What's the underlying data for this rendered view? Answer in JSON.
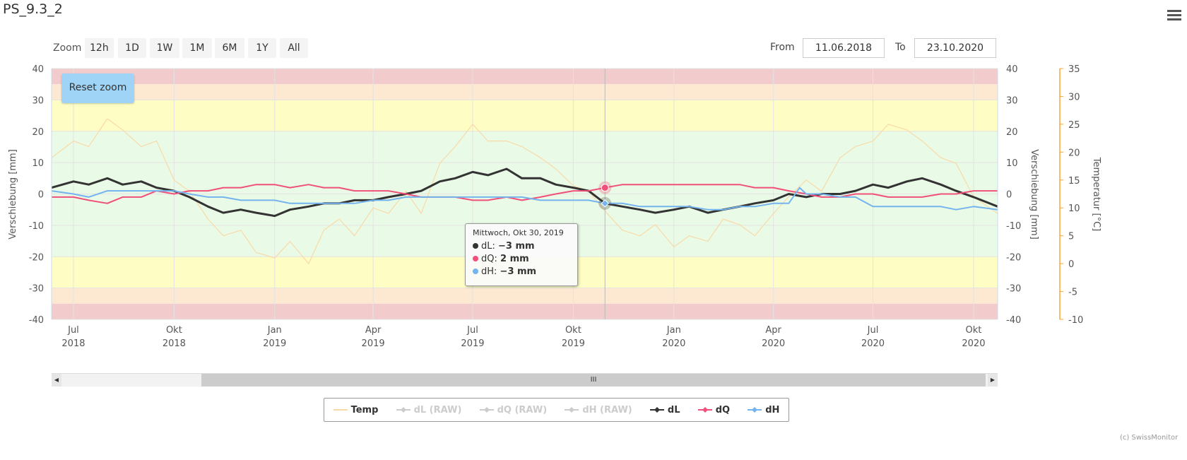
{
  "title": "PS_9.3_2",
  "zoom": {
    "label": "Zoom",
    "buttons": [
      "12h",
      "1D",
      "1W",
      "1M",
      "6M",
      "1Y",
      "All"
    ]
  },
  "range": {
    "from_label": "From",
    "from": "11.06.2018",
    "to_label": "To",
    "to": "23.10.2020"
  },
  "reset_zoom": "Reset zoom",
  "tooltip": {
    "header": "Mittwoch, Okt 30, 2019",
    "rows": [
      {
        "name": "dL",
        "value": "−3 mm",
        "color": "#333333"
      },
      {
        "name": "dQ",
        "value": "2 mm",
        "color": "#f0507a"
      },
      {
        "name": "dH",
        "value": "−3 mm",
        "color": "#74b4ee"
      }
    ]
  },
  "legend": [
    {
      "name": "Temp",
      "color": "#f9d9a8",
      "active": true
    },
    {
      "name": "dL (RAW)",
      "color": "#cccccc",
      "active": false
    },
    {
      "name": "dQ (RAW)",
      "color": "#cccccc",
      "active": false
    },
    {
      "name": "dH (RAW)",
      "color": "#cccccc",
      "active": false
    },
    {
      "name": "dL",
      "color": "#333333",
      "active": true
    },
    {
      "name": "dQ",
      "color": "#f0507a",
      "active": true
    },
    {
      "name": "dH",
      "color": "#74b4ee",
      "active": true
    }
  ],
  "credit": "(c) SwissMonitor",
  "scrollbar_thumb": "III",
  "chart_data": {
    "type": "line",
    "x_range": [
      "2018-06-11",
      "2020-10-23"
    ],
    "x_ticks": [
      [
        "Jul",
        "2018"
      ],
      [
        "Okt",
        "2018"
      ],
      [
        "Jan",
        "2019"
      ],
      [
        "Apr",
        "2019"
      ],
      [
        "Jul",
        "2019"
      ],
      [
        "Okt",
        "2019"
      ],
      [
        "Jan",
        "2020"
      ],
      [
        "Apr",
        "2020"
      ],
      [
        "Jul",
        "2020"
      ],
      [
        "Okt",
        "2020"
      ]
    ],
    "x_tick_dates": [
      "2018-07-01",
      "2018-10-01",
      "2019-01-01",
      "2019-04-01",
      "2019-07-01",
      "2019-10-01",
      "2020-01-01",
      "2020-04-01",
      "2020-07-01",
      "2020-10-01"
    ],
    "y_left": {
      "label": "Verschiebung [mm]",
      "range": [
        -40,
        40
      ],
      "ticks": [
        40,
        30,
        20,
        10,
        0,
        -10,
        -20,
        -30,
        -40
      ]
    },
    "y_right": {
      "label": "Verschiebung [mm]",
      "range": [
        -40,
        40
      ],
      "ticks": [
        40,
        30,
        20,
        10,
        0,
        -10,
        -20,
        -30,
        -40
      ]
    },
    "y_temp": {
      "label": "Temperatur [°C]",
      "range": [
        -10,
        35
      ],
      "ticks": [
        35,
        30,
        25,
        20,
        15,
        10,
        5,
        0,
        -5,
        -10
      ],
      "color": "#f7a535"
    },
    "bands": [
      {
        "from": 35,
        "to": 40,
        "color": "#f2cccc"
      },
      {
        "from": 30,
        "to": 35,
        "color": "#fde9d2"
      },
      {
        "from": 20,
        "to": 30,
        "color": "#fdfdc4"
      },
      {
        "from": -20,
        "to": 20,
        "color": "#e9fbe6"
      },
      {
        "from": -30,
        "to": -20,
        "color": "#fdfdc4"
      },
      {
        "from": -35,
        "to": -30,
        "color": "#fde9d2"
      },
      {
        "from": -40,
        "to": -35,
        "color": "#f2cccc"
      }
    ],
    "crosshair": "2019-10-30",
    "series": [
      {
        "name": "Temp",
        "axis": "temp",
        "color": "#f9d9a8",
        "x": [
          "2018-06-11",
          "2018-07-01",
          "2018-07-15",
          "2018-08-01",
          "2018-08-15",
          "2018-09-01",
          "2018-09-15",
          "2018-10-01",
          "2018-10-15",
          "2018-11-01",
          "2018-11-15",
          "2018-12-01",
          "2018-12-15",
          "2019-01-01",
          "2019-01-15",
          "2019-02-01",
          "2019-02-15",
          "2019-03-01",
          "2019-03-15",
          "2019-04-01",
          "2019-04-15",
          "2019-05-01",
          "2019-05-15",
          "2019-06-01",
          "2019-06-15",
          "2019-07-01",
          "2019-07-15",
          "2019-08-01",
          "2019-08-15",
          "2019-09-01",
          "2019-09-15",
          "2019-10-01",
          "2019-10-15",
          "2019-11-01",
          "2019-11-15",
          "2019-12-01",
          "2019-12-15",
          "2020-01-01",
          "2020-01-15",
          "2020-02-01",
          "2020-02-15",
          "2020-03-01",
          "2020-03-15",
          "2020-04-01",
          "2020-04-15",
          "2020-05-01",
          "2020-05-15",
          "2020-06-01",
          "2020-06-15",
          "2020-07-01",
          "2020-07-15",
          "2020-08-01",
          "2020-08-15",
          "2020-09-01",
          "2020-09-15",
          "2020-10-01",
          "2020-10-23"
        ],
        "values": [
          19,
          22,
          21,
          26,
          24,
          21,
          22,
          15,
          13,
          8,
          5,
          6,
          2,
          1,
          4,
          0,
          6,
          8,
          5,
          10,
          9,
          13,
          9,
          18,
          21,
          25,
          22,
          22,
          21,
          19,
          17,
          14,
          13,
          9,
          6,
          5,
          7,
          3,
          5,
          4,
          8,
          7,
          5,
          9,
          12,
          15,
          13,
          19,
          21,
          22,
          25,
          24,
          22,
          19,
          18,
          12,
          9
        ]
      },
      {
        "name": "dL",
        "axis": "left",
        "color": "#333333",
        "x": [
          "2018-06-11",
          "2018-07-01",
          "2018-07-15",
          "2018-08-01",
          "2018-08-15",
          "2018-09-01",
          "2018-09-15",
          "2018-10-01",
          "2018-10-15",
          "2018-11-01",
          "2018-11-15",
          "2018-12-01",
          "2018-12-15",
          "2019-01-01",
          "2019-01-15",
          "2019-02-01",
          "2019-02-15",
          "2019-03-01",
          "2019-03-15",
          "2019-04-01",
          "2019-04-15",
          "2019-05-01",
          "2019-05-15",
          "2019-06-01",
          "2019-06-15",
          "2019-07-01",
          "2019-07-15",
          "2019-08-01",
          "2019-08-15",
          "2019-09-01",
          "2019-09-15",
          "2019-10-01",
          "2019-10-15",
          "2019-10-30",
          "2019-11-15",
          "2019-12-01",
          "2019-12-15",
          "2020-01-01",
          "2020-01-15",
          "2020-02-01",
          "2020-02-15",
          "2020-03-01",
          "2020-03-15",
          "2020-04-01",
          "2020-04-15",
          "2020-05-01",
          "2020-05-15",
          "2020-06-01",
          "2020-06-15",
          "2020-07-01",
          "2020-07-15",
          "2020-08-01",
          "2020-08-15",
          "2020-09-01",
          "2020-09-15",
          "2020-10-01",
          "2020-10-23"
        ],
        "values": [
          2,
          4,
          3,
          5,
          3,
          4,
          2,
          1,
          -1,
          -4,
          -6,
          -5,
          -6,
          -7,
          -5,
          -4,
          -3,
          -3,
          -2,
          -2,
          -1,
          0,
          1,
          4,
          5,
          7,
          6,
          8,
          5,
          5,
          3,
          2,
          1,
          -3,
          -4,
          -5,
          -6,
          -5,
          -4,
          -6,
          -5,
          -4,
          -3,
          -2,
          0,
          -1,
          0,
          0,
          1,
          3,
          2,
          4,
          5,
          3,
          1,
          -1,
          -4
        ]
      },
      {
        "name": "dQ",
        "axis": "left",
        "color": "#f0507a",
        "x": [
          "2018-06-11",
          "2018-07-01",
          "2018-07-15",
          "2018-08-01",
          "2018-08-15",
          "2018-09-01",
          "2018-09-15",
          "2018-10-01",
          "2018-10-15",
          "2018-11-01",
          "2018-11-15",
          "2018-12-01",
          "2018-12-15",
          "2019-01-01",
          "2019-01-15",
          "2019-02-01",
          "2019-02-15",
          "2019-03-01",
          "2019-03-15",
          "2019-04-01",
          "2019-04-15",
          "2019-05-01",
          "2019-05-15",
          "2019-06-01",
          "2019-06-15",
          "2019-07-01",
          "2019-07-15",
          "2019-08-01",
          "2019-08-15",
          "2019-09-01",
          "2019-09-15",
          "2019-10-01",
          "2019-10-15",
          "2019-10-30",
          "2019-11-15",
          "2019-12-01",
          "2019-12-15",
          "2020-01-01",
          "2020-01-15",
          "2020-02-01",
          "2020-02-15",
          "2020-03-01",
          "2020-03-15",
          "2020-04-01",
          "2020-04-15",
          "2020-05-01",
          "2020-05-15",
          "2020-06-01",
          "2020-06-15",
          "2020-07-01",
          "2020-07-15",
          "2020-08-01",
          "2020-08-15",
          "2020-09-01",
          "2020-09-15",
          "2020-10-01",
          "2020-10-23"
        ],
        "values": [
          -1,
          -1,
          -2,
          -3,
          -1,
          -1,
          1,
          0,
          1,
          1,
          2,
          2,
          3,
          3,
          2,
          3,
          2,
          2,
          1,
          1,
          1,
          0,
          -1,
          -1,
          -1,
          -2,
          -2,
          -1,
          -2,
          -1,
          0,
          1,
          1,
          2,
          3,
          3,
          3,
          3,
          3,
          3,
          3,
          3,
          2,
          2,
          1,
          0,
          -1,
          -1,
          0,
          0,
          -1,
          -1,
          -1,
          0,
          0,
          1,
          1
        ]
      },
      {
        "name": "dH",
        "axis": "left",
        "color": "#74b4ee",
        "x": [
          "2018-06-11",
          "2018-07-01",
          "2018-07-15",
          "2018-08-01",
          "2018-08-15",
          "2018-09-01",
          "2018-09-15",
          "2018-10-01",
          "2018-10-15",
          "2018-11-01",
          "2018-11-15",
          "2018-12-01",
          "2018-12-15",
          "2019-01-01",
          "2019-01-15",
          "2019-02-01",
          "2019-02-15",
          "2019-03-01",
          "2019-03-15",
          "2019-04-01",
          "2019-04-15",
          "2019-05-01",
          "2019-05-15",
          "2019-06-01",
          "2019-06-15",
          "2019-07-01",
          "2019-07-15",
          "2019-08-01",
          "2019-08-15",
          "2019-09-01",
          "2019-09-15",
          "2019-10-01",
          "2019-10-15",
          "2019-10-30",
          "2019-11-15",
          "2019-12-01",
          "2019-12-15",
          "2020-01-01",
          "2020-01-15",
          "2020-02-01",
          "2020-02-15",
          "2020-03-01",
          "2020-03-15",
          "2020-04-01",
          "2020-04-15",
          "2020-04-25",
          "2020-05-01",
          "2020-05-15",
          "2020-06-01",
          "2020-06-15",
          "2020-07-01",
          "2020-07-15",
          "2020-08-01",
          "2020-08-15",
          "2020-09-01",
          "2020-09-15",
          "2020-10-01",
          "2020-10-23"
        ],
        "values": [
          1,
          0,
          -1,
          1,
          1,
          1,
          1,
          1,
          0,
          -1,
          -1,
          -2,
          -2,
          -2,
          -3,
          -3,
          -3,
          -3,
          -3,
          -2,
          -2,
          -1,
          -1,
          -1,
          -1,
          -1,
          -1,
          -1,
          -1,
          -2,
          -2,
          -2,
          -2,
          -3,
          -3,
          -4,
          -4,
          -4,
          -4,
          -5,
          -5,
          -4,
          -4,
          -3,
          -3,
          2,
          0,
          0,
          -1,
          -1,
          -4,
          -4,
          -4,
          -4,
          -4,
          -5,
          -4,
          -5
        ]
      }
    ]
  }
}
